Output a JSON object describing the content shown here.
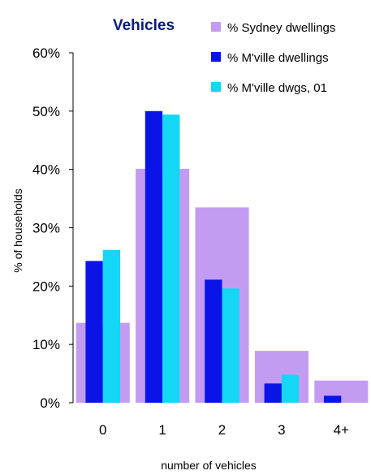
{
  "chart_data": {
    "type": "bar",
    "title": "Vehicles",
    "xlabel": "number of vehicles",
    "ylabel": "% of households",
    "categories": [
      "0",
      "1",
      "2",
      "3",
      "4+"
    ],
    "ylim": [
      0,
      60
    ],
    "yticks": [
      "0%",
      "10%",
      "20%",
      "30%",
      "40%",
      "50%",
      "60%"
    ],
    "series": [
      {
        "name": "% Sydney dwellings",
        "color": "#c39cf2",
        "values": [
          13.7,
          40.1,
          33.5,
          8.9,
          3.8
        ]
      },
      {
        "name": "% M'ville dwellings",
        "color": "#0a14e6",
        "values": [
          24.3,
          50.0,
          21.1,
          3.3,
          1.2
        ]
      },
      {
        "name": "% M'ville dwgs, 01",
        "color": "#14d6f5",
        "values": [
          26.2,
          49.4,
          19.6,
          4.8,
          0.0
        ]
      }
    ],
    "grid": false,
    "legend_position": "top-right"
  }
}
